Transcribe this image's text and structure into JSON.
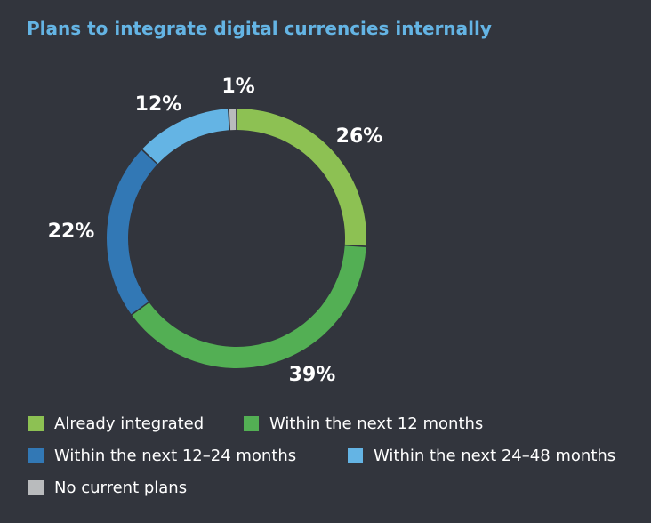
{
  "title": "Plans to integrate digital currencies internally",
  "chart_data": {
    "type": "pie",
    "title": "Plans to integrate digital currencies internally",
    "legend_position": "bottom",
    "donut": true,
    "categories": [
      "Already integrated",
      "Within the next 12 months",
      "Within the next 12–24 months",
      "Within the next 24–48 months",
      "No current plans"
    ],
    "values": [
      26,
      39,
      22,
      12,
      1
    ],
    "labels": [
      "26%",
      "39%",
      "22%",
      "12%",
      "1%"
    ],
    "colors": [
      "#8dc153",
      "#53af54",
      "#3278b5",
      "#64b4e4",
      "#b9bbbd"
    ]
  }
}
